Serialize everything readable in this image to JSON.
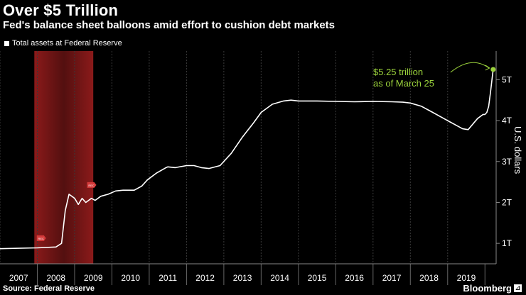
{
  "header": {
    "title": "Over $5 Trillion",
    "subtitle": "Fed's balance sheet balloons amid effort to cushion debt markets"
  },
  "footer": {
    "source": "Source: Federal Reserve",
    "brand": "Bloomberg"
  },
  "colors": {
    "line": "#ffffff",
    "annotation": "#9bd23c",
    "recession": "#8b1a1a",
    "marker": "#d43a3a"
  },
  "chart_data": {
    "type": "line",
    "title": "Over $5 Trillion",
    "subtitle": "Fed's balance sheet balloons amid effort to cushion debt markets",
    "legend": "Total assets at Federal Reserve",
    "ylabel": "U.S. dollars",
    "xlabel": "",
    "xlim": [
      2007,
      2020.3
    ],
    "ylim": [
      0.5,
      5.7
    ],
    "x_ticks": [
      "2007",
      "2008",
      "2009",
      "2010",
      "2011",
      "2012",
      "2013",
      "2014",
      "2015",
      "2016",
      "2017",
      "2018",
      "2019"
    ],
    "y_ticks": [
      {
        "value": 1,
        "label": "1T"
      },
      {
        "value": 2,
        "label": "2T"
      },
      {
        "value": 3,
        "label": "3T"
      },
      {
        "value": 4,
        "label": "4T"
      },
      {
        "value": 5,
        "label": "5T"
      }
    ],
    "recession": {
      "start": 2007.92,
      "end": 2009.5
    },
    "grid": "vertical",
    "series": [
      {
        "name": "Total assets at Federal Reserve",
        "x": [
          2007.0,
          2007.5,
          2008.0,
          2008.5,
          2008.65,
          2008.75,
          2008.85,
          2009.0,
          2009.1,
          2009.2,
          2009.3,
          2009.45,
          2009.55,
          2009.7,
          2009.9,
          2010.1,
          2010.3,
          2010.6,
          2010.8,
          2010.95,
          2011.2,
          2011.45,
          2011.5,
          2011.7,
          2012.0,
          2012.2,
          2012.4,
          2012.6,
          2012.9,
          2013.2,
          2013.5,
          2013.8,
          2014.0,
          2014.3,
          2014.6,
          2014.8,
          2015.0,
          2015.5,
          2016.0,
          2016.5,
          2017.0,
          2017.5,
          2017.8,
          2018.0,
          2018.3,
          2018.6,
          2018.9,
          2019.1,
          2019.3,
          2019.4,
          2019.55,
          2019.8,
          2019.95,
          2020.0,
          2020.05,
          2020.1,
          2020.15,
          2020.22
        ],
        "y": [
          0.87,
          0.88,
          0.89,
          0.91,
          1.0,
          1.8,
          2.2,
          2.1,
          1.95,
          2.1,
          2.0,
          2.1,
          2.05,
          2.15,
          2.2,
          2.28,
          2.3,
          2.3,
          2.4,
          2.55,
          2.72,
          2.85,
          2.87,
          2.85,
          2.9,
          2.9,
          2.85,
          2.83,
          2.9,
          3.2,
          3.6,
          3.95,
          4.2,
          4.4,
          4.48,
          4.5,
          4.48,
          4.48,
          4.47,
          4.46,
          4.47,
          4.46,
          4.45,
          4.43,
          4.35,
          4.2,
          4.05,
          3.95,
          3.85,
          3.8,
          3.78,
          4.05,
          4.15,
          4.15,
          4.2,
          4.35,
          4.7,
          5.25
        ]
      }
    ],
    "annotations": [
      {
        "text": "$5.25 trillion",
        "text2": "as of March 25",
        "x": 2020.22,
        "y": 5.25
      },
      {
        "text": "REC",
        "x": 2008.1,
        "y": 0.9
      },
      {
        "text": "REC",
        "x": 2009.45,
        "y": 2.2
      }
    ]
  }
}
